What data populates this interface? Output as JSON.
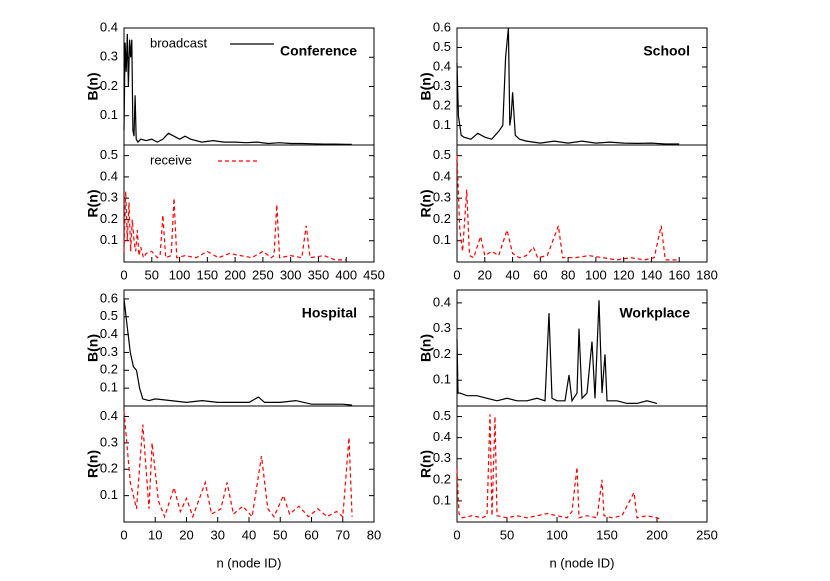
{
  "chart_data": [
    {
      "type": "line",
      "title": "Conference",
      "ylabel": "B(n)",
      "legend": "upper left",
      "xlim": [
        0,
        450
      ],
      "ylim": [
        0,
        0.4
      ],
      "yticks": [
        0.1,
        0.2,
        0.3,
        0.4
      ],
      "x": [
        0,
        2,
        4,
        6,
        8,
        10,
        12,
        14,
        16,
        18,
        20,
        22,
        25,
        30,
        40,
        50,
        60,
        70,
        80,
        90,
        100,
        110,
        120,
        140,
        160,
        180,
        200,
        220,
        240,
        260,
        280,
        300,
        320,
        340,
        360,
        380,
        400,
        410
      ],
      "series": [
        {
          "name": "broadcast",
          "color": "#000000",
          "dash": false,
          "values": [
            0.05,
            0.35,
            0.25,
            0.38,
            0.2,
            0.36,
            0.3,
            0.36,
            0.05,
            0.03,
            0.17,
            0.02,
            0.01,
            0.02,
            0.015,
            0.02,
            0.01,
            0.02,
            0.04,
            0.03,
            0.02,
            0.03,
            0.02,
            0.01,
            0.015,
            0.01,
            0.01,
            0.008,
            0.01,
            0.005,
            0.008,
            0.005,
            0.005,
            0.004,
            0.003,
            0.003,
            0.002,
            0.002
          ]
        }
      ]
    },
    {
      "type": "line",
      "ylabel": "R(n)",
      "legend": "upper left",
      "xlim": [
        0,
        450
      ],
      "xticks": [
        0,
        50,
        100,
        150,
        200,
        250,
        300,
        350,
        400,
        450
      ],
      "ylim": [
        0,
        0.55
      ],
      "yticks": [
        0.1,
        0.2,
        0.3,
        0.4,
        0.5
      ],
      "x": [
        0,
        3,
        6,
        9,
        12,
        15,
        18,
        21,
        24,
        27,
        30,
        35,
        40,
        50,
        60,
        65,
        70,
        75,
        85,
        90,
        95,
        110,
        130,
        150,
        170,
        190,
        210,
        230,
        250,
        265,
        270,
        275,
        280,
        300,
        320,
        328,
        335,
        360,
        380,
        400
      ],
      "series": [
        {
          "name": "receive",
          "color": "#ff0000",
          "dash": true,
          "values": [
            0.05,
            0.33,
            0.1,
            0.28,
            0.05,
            0.2,
            0.1,
            0.05,
            0.15,
            0.03,
            0.07,
            0.02,
            0.04,
            0.05,
            0.02,
            0.03,
            0.22,
            0.02,
            0.03,
            0.3,
            0.02,
            0.03,
            0.02,
            0.05,
            0.02,
            0.04,
            0.03,
            0.02,
            0.05,
            0.02,
            0.03,
            0.27,
            0.02,
            0.03,
            0.02,
            0.17,
            0.02,
            0.03,
            0.01,
            0.01
          ]
        }
      ]
    },
    {
      "type": "line",
      "title": "School",
      "ylabel": "B(n)",
      "xlim": [
        0,
        180
      ],
      "ylim": [
        0,
        0.6
      ],
      "yticks": [
        0.1,
        0.2,
        0.3,
        0.4,
        0.5,
        0.6
      ],
      "x": [
        0,
        1,
        3,
        5,
        10,
        15,
        20,
        25,
        30,
        33,
        35,
        37,
        38,
        39,
        40,
        42,
        45,
        50,
        60,
        70,
        80,
        90,
        100,
        110,
        120,
        130,
        140,
        150,
        160
      ],
      "series": [
        {
          "color": "#000000",
          "dash": false,
          "values": [
            0.42,
            0.15,
            0.05,
            0.04,
            0.03,
            0.06,
            0.04,
            0.03,
            0.07,
            0.1,
            0.45,
            0.6,
            0.1,
            0.15,
            0.27,
            0.05,
            0.03,
            0.02,
            0.01,
            0.02,
            0.01,
            0.02,
            0.01,
            0.015,
            0.01,
            0.008,
            0.01,
            0.005,
            0.005
          ]
        }
      ]
    },
    {
      "type": "line",
      "ylabel": "R(n)",
      "xlim": [
        0,
        180
      ],
      "xticks": [
        0,
        20,
        40,
        60,
        80,
        100,
        120,
        140,
        160,
        180
      ],
      "ylim": [
        0,
        0.55
      ],
      "yticks": [
        0.1,
        0.2,
        0.3,
        0.4,
        0.5
      ],
      "x": [
        0,
        2,
        4,
        7,
        9,
        12,
        17,
        20,
        25,
        30,
        36,
        40,
        45,
        50,
        55,
        58,
        65,
        73,
        76,
        85,
        95,
        105,
        115,
        125,
        135,
        142,
        147,
        150,
        160
      ],
      "series": [
        {
          "color": "#ff0000",
          "dash": true,
          "values": [
            0.5,
            0.15,
            0.05,
            0.34,
            0.03,
            0.02,
            0.12,
            0.03,
            0.05,
            0.03,
            0.15,
            0.04,
            0.02,
            0.03,
            0.07,
            0.02,
            0.03,
            0.17,
            0.02,
            0.02,
            0.03,
            0.02,
            0.01,
            0.02,
            0.01,
            0.02,
            0.17,
            0.01,
            0.01
          ]
        }
      ]
    },
    {
      "type": "line",
      "title": "Hospital",
      "ylabel": "B(n)",
      "xlim": [
        0,
        80
      ],
      "ylim": [
        0,
        0.65
      ],
      "yticks": [
        0.1,
        0.2,
        0.3,
        0.4,
        0.5,
        0.6
      ],
      "x": [
        0,
        1,
        2,
        3,
        4,
        5,
        6,
        8,
        10,
        15,
        20,
        25,
        30,
        35,
        40,
        43,
        45,
        50,
        55,
        60,
        65,
        70,
        73
      ],
      "series": [
        {
          "color": "#000000",
          "dash": false,
          "values": [
            0.6,
            0.45,
            0.3,
            0.22,
            0.2,
            0.1,
            0.04,
            0.03,
            0.04,
            0.03,
            0.02,
            0.03,
            0.02,
            0.02,
            0.02,
            0.05,
            0.02,
            0.02,
            0.03,
            0.01,
            0.01,
            0.01,
            0.005
          ]
        }
      ]
    },
    {
      "type": "line",
      "ylabel": "R(n)",
      "xlabel": "n (node ID)",
      "xlim": [
        0,
        80
      ],
      "xticks": [
        0,
        10,
        20,
        30,
        40,
        50,
        60,
        70,
        80
      ],
      "ylim": [
        0,
        0.44
      ],
      "yticks": [
        0.1,
        0.2,
        0.3,
        0.4
      ],
      "x": [
        0,
        2,
        4,
        6,
        8,
        9,
        11,
        13,
        16,
        18,
        20,
        22,
        26,
        28,
        31,
        33,
        35,
        38,
        41,
        44,
        46,
        48,
        51,
        53,
        56,
        59,
        62,
        65,
        68,
        70,
        72,
        73
      ],
      "series": [
        {
          "color": "#ff0000",
          "dash": true,
          "values": [
            0.42,
            0.15,
            0.05,
            0.37,
            0.05,
            0.3,
            0.08,
            0.02,
            0.13,
            0.04,
            0.09,
            0.02,
            0.15,
            0.03,
            0.05,
            0.15,
            0.03,
            0.06,
            0.02,
            0.25,
            0.05,
            0.02,
            0.1,
            0.03,
            0.06,
            0.02,
            0.05,
            0.02,
            0.04,
            0.02,
            0.32,
            0.02
          ]
        }
      ]
    },
    {
      "type": "line",
      "title": "Workplace",
      "ylabel": "B(n)",
      "xlim": [
        0,
        250
      ],
      "ylim": [
        0,
        0.45
      ],
      "yticks": [
        0.1,
        0.2,
        0.3,
        0.4
      ],
      "x": [
        0,
        1,
        3,
        10,
        20,
        30,
        40,
        50,
        60,
        70,
        80,
        88,
        92,
        95,
        100,
        108,
        112,
        115,
        120,
        122,
        125,
        130,
        135,
        138,
        142,
        145,
        148,
        150,
        160,
        170,
        180,
        190,
        200
      ],
      "series": [
        {
          "color": "#000000",
          "dash": false,
          "values": [
            0.26,
            0.05,
            0.05,
            0.04,
            0.04,
            0.03,
            0.02,
            0.03,
            0.02,
            0.02,
            0.03,
            0.02,
            0.36,
            0.03,
            0.02,
            0.02,
            0.12,
            0.02,
            0.05,
            0.3,
            0.03,
            0.05,
            0.25,
            0.03,
            0.41,
            0.05,
            0.2,
            0.02,
            0.02,
            0.01,
            0.01,
            0.02,
            0.01
          ]
        }
      ]
    },
    {
      "type": "line",
      "ylabel": "R(n)",
      "xlabel": "n (node ID)",
      "xlim": [
        0,
        250
      ],
      "xticks": [
        0,
        50,
        100,
        150,
        200,
        250
      ],
      "ylim": [
        0,
        0.55
      ],
      "yticks": [
        0.1,
        0.2,
        0.3,
        0.4,
        0.5
      ],
      "x": [
        0,
        2,
        5,
        15,
        25,
        30,
        33,
        35,
        38,
        40,
        50,
        60,
        70,
        80,
        90,
        100,
        110,
        115,
        120,
        122,
        130,
        140,
        145,
        147,
        155,
        165,
        177,
        180,
        190,
        200,
        205
      ],
      "series": [
        {
          "color": "#ff0000",
          "dash": true,
          "values": [
            0.25,
            0.04,
            0.02,
            0.03,
            0.02,
            0.03,
            0.51,
            0.03,
            0.5,
            0.03,
            0.02,
            0.03,
            0.02,
            0.03,
            0.04,
            0.03,
            0.02,
            0.05,
            0.26,
            0.02,
            0.03,
            0.02,
            0.2,
            0.03,
            0.02,
            0.03,
            0.14,
            0.02,
            0.03,
            0.02,
            0.01
          ]
        }
      ]
    }
  ]
}
